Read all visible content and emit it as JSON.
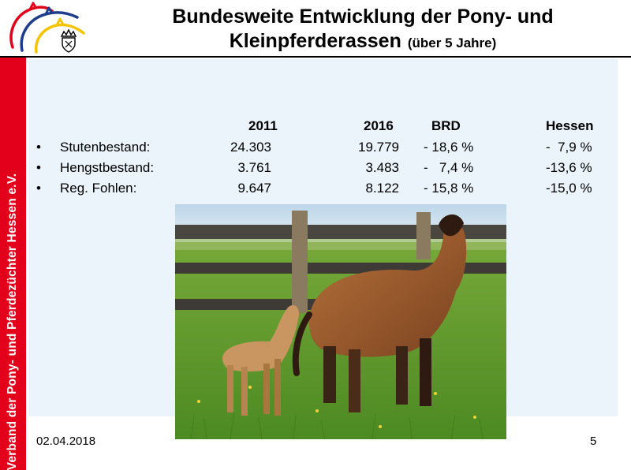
{
  "slide": {
    "title_line1": "Bundesweite Entwicklung der Pony- und",
    "title_line2": "Kleinpferderassen",
    "title_sub": "(über 5 Jahre)",
    "sidebar_text": "Verband der Pony- und Pferdezüchter Hessen e.V.",
    "date": "02.04.2018",
    "page_number": "5"
  },
  "table": {
    "headers": {
      "y2011": "2011",
      "y2016": "2016",
      "brd": "BRD",
      "hessen": "Hessen"
    },
    "rows": [
      {
        "bullet": "•",
        "label": "Stutenbestand:",
        "y2011": "24.303",
        "y2016": "19.779",
        "brd": "- 18,6 %",
        "hessen": "-  7,9 %"
      },
      {
        "bullet": "•",
        "label": "Hengstbestand:",
        "y2011": "3.761",
        "y2016": "3.483",
        "brd": "-   7,4 %",
        "hessen": "-13,6 %"
      },
      {
        "bullet": "•",
        "label": "Reg. Fohlen:",
        "y2011": "9.647",
        "y2016": "8.122",
        "brd": "- 15,8 %",
        "hessen": "-15,0 %"
      }
    ]
  },
  "colors": {
    "sidebar": "#e2001a",
    "panel": "#eaf4fa",
    "logo_red": "#e2001a",
    "logo_blue": "#1f3d8a",
    "logo_yellow": "#f5c400"
  },
  "icons": {
    "logo": "horse-heads-logo",
    "crest": "crown-crest-icon"
  }
}
